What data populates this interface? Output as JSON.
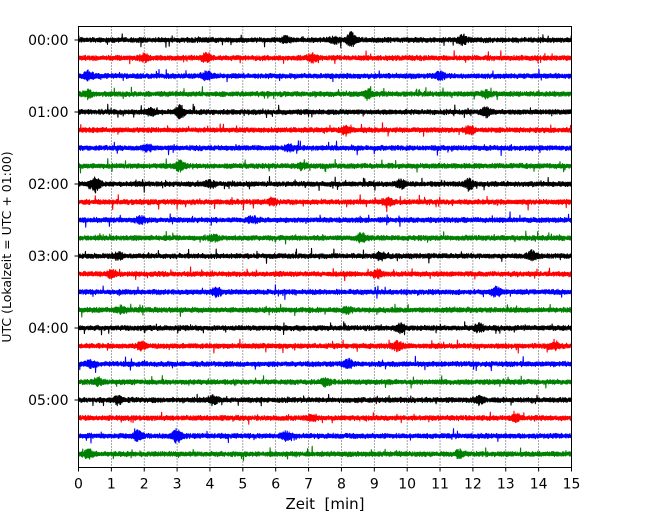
{
  "chart_data": {
    "type": "line",
    "title": "",
    "xlabel": "Zeit  [min]",
    "ylabel": "UTC (Lokalzeit = UTC + 01:00)",
    "xlim": [
      0,
      15
    ],
    "x_ticks": [
      "0",
      "1",
      "2",
      "3",
      "4",
      "5",
      "6",
      "7",
      "8",
      "9",
      "10",
      "11",
      "12",
      "13",
      "14",
      "15"
    ],
    "y_ticks": [
      "00:00",
      "01:00",
      "02:00",
      "03:00",
      "04:00",
      "05:00"
    ],
    "grid_x": true,
    "trace_interval_minutes": 15,
    "trace_count": 24,
    "trace_colors": [
      "#000000",
      "#ff0000",
      "#0000ff",
      "#008000"
    ],
    "series": [
      {
        "start": "00:00",
        "color": "#000000",
        "events": [
          [
            6.3,
            0.35
          ],
          [
            8.3,
            0.9
          ],
          [
            11.7,
            0.55
          ],
          [
            7.8,
            0.35
          ]
        ]
      },
      {
        "start": "00:15",
        "color": "#ff0000",
        "events": [
          [
            2.0,
            0.4
          ],
          [
            3.9,
            0.55
          ],
          [
            7.1,
            0.45
          ]
        ]
      },
      {
        "start": "00:30",
        "color": "#0000ff",
        "events": [
          [
            0.3,
            0.5
          ],
          [
            3.9,
            0.55
          ],
          [
            11.0,
            0.45
          ]
        ]
      },
      {
        "start": "00:45",
        "color": "#008000",
        "events": [
          [
            0.3,
            0.45
          ],
          [
            8.8,
            0.5
          ],
          [
            12.4,
            0.35
          ]
        ]
      },
      {
        "start": "01:00",
        "color": "#000000",
        "events": [
          [
            2.2,
            0.45
          ],
          [
            3.1,
            0.8
          ],
          [
            12.4,
            0.5
          ]
        ]
      },
      {
        "start": "01:15",
        "color": "#ff0000",
        "events": [
          [
            8.1,
            0.4
          ],
          [
            11.9,
            0.45
          ]
        ]
      },
      {
        "start": "01:30",
        "color": "#0000ff",
        "events": [
          [
            2.1,
            0.35
          ],
          [
            6.4,
            0.35
          ]
        ]
      },
      {
        "start": "01:45",
        "color": "#008000",
        "events": [
          [
            3.1,
            0.75
          ],
          [
            6.8,
            0.35
          ]
        ]
      },
      {
        "start": "02:00",
        "color": "#000000",
        "events": [
          [
            0.5,
            0.95
          ],
          [
            11.9,
            0.6
          ],
          [
            4.0,
            0.4
          ],
          [
            9.8,
            0.4
          ]
        ]
      },
      {
        "start": "02:15",
        "color": "#ff0000",
        "events": [
          [
            5.9,
            0.4
          ],
          [
            9.4,
            0.5
          ]
        ]
      },
      {
        "start": "02:30",
        "color": "#0000ff",
        "events": [
          [
            1.9,
            0.4
          ],
          [
            5.3,
            0.35
          ]
        ]
      },
      {
        "start": "02:45",
        "color": "#008000",
        "events": [
          [
            8.6,
            0.55
          ],
          [
            4.1,
            0.35
          ]
        ]
      },
      {
        "start": "03:00",
        "color": "#000000",
        "events": [
          [
            1.2,
            0.45
          ],
          [
            13.8,
            0.6
          ],
          [
            9.2,
            0.45
          ]
        ]
      },
      {
        "start": "03:15",
        "color": "#ff0000",
        "events": [
          [
            1.0,
            0.4
          ],
          [
            9.1,
            0.45
          ]
        ]
      },
      {
        "start": "03:30",
        "color": "#0000ff",
        "events": [
          [
            4.2,
            0.5
          ],
          [
            12.7,
            0.55
          ]
        ]
      },
      {
        "start": "03:45",
        "color": "#008000",
        "events": [
          [
            1.3,
            0.4
          ],
          [
            8.2,
            0.4
          ]
        ]
      },
      {
        "start": "04:00",
        "color": "#000000",
        "events": [
          [
            9.8,
            0.5
          ],
          [
            12.2,
            0.45
          ]
        ]
      },
      {
        "start": "04:15",
        "color": "#ff0000",
        "events": [
          [
            1.9,
            0.45
          ],
          [
            9.7,
            0.55
          ],
          [
            14.5,
            0.4
          ]
        ]
      },
      {
        "start": "04:30",
        "color": "#0000ff",
        "events": [
          [
            0.4,
            0.4
          ],
          [
            8.2,
            0.5
          ]
        ]
      },
      {
        "start": "04:45",
        "color": "#008000",
        "events": [
          [
            0.6,
            0.45
          ],
          [
            7.5,
            0.45
          ]
        ]
      },
      {
        "start": "05:00",
        "color": "#000000",
        "events": [
          [
            4.1,
            0.55
          ],
          [
            1.2,
            0.45
          ],
          [
            12.2,
            0.4
          ]
        ]
      },
      {
        "start": "05:15",
        "color": "#ff0000",
        "events": [
          [
            7.1,
            0.4
          ],
          [
            13.3,
            0.4
          ]
        ]
      },
      {
        "start": "05:30",
        "color": "#0000ff",
        "events": [
          [
            3.0,
            0.85
          ],
          [
            1.8,
            0.55
          ],
          [
            6.3,
            0.45
          ]
        ]
      },
      {
        "start": "05:45",
        "color": "#008000",
        "events": [
          [
            0.3,
            0.5
          ],
          [
            11.6,
            0.45
          ]
        ]
      }
    ]
  }
}
